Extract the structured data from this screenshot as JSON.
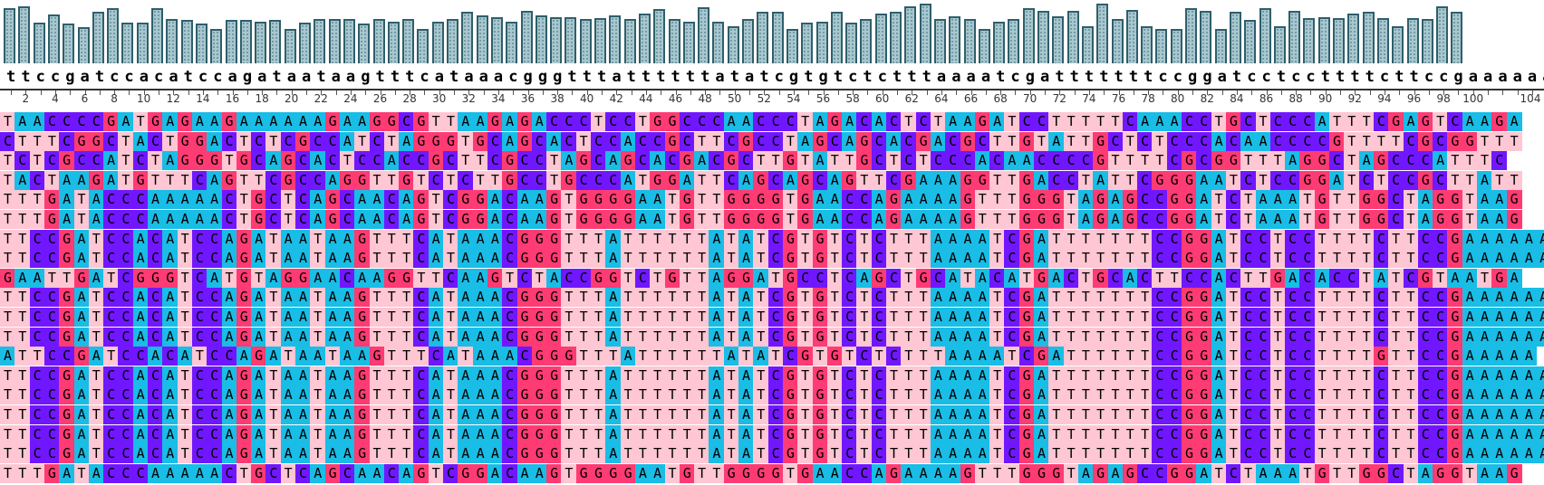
{
  "colors": {
    "A": "#ff2d7a",
    "C": "#7a1cff",
    "G": "#ff3d6b",
    "T": "#ffc4d2",
    "A_alt": "#00b7e6",
    "conservation_fill": "#a9c7cf",
    "conservation_border": "#2f5f6b"
  },
  "color_scheme": {
    "A": "#19bde6",
    "C": "#7117ff",
    "G": "#ff3b73",
    "T": "#ffc6d3"
  },
  "consensus": "ttccgatccacatccagataataagtttcataaacgggtttattttttatatcgtgtctctttaaaatcgatttttttccggatcctccttttcttccgaaaaaa",
  "ruler": {
    "start": 2,
    "step": 2,
    "labels": [
      "2",
      "4",
      "6",
      "8",
      "10",
      "12",
      "14",
      "16",
      "18",
      "20",
      "22",
      "24",
      "26",
      "28",
      "30",
      "32",
      "34",
      "36",
      "38",
      "40",
      "42",
      "44",
      "46",
      "48",
      "50",
      "52",
      "54",
      "56",
      "58",
      "60",
      "62",
      "64",
      "66",
      "68",
      "70",
      "72",
      "74",
      "76",
      "78",
      "80",
      "82",
      "84",
      "86",
      "88",
      "90",
      "92",
      "94",
      "96",
      "98",
      "100",
      "104"
    ]
  },
  "conservation": [
    0.93,
    0.95,
    0.68,
    0.82,
    0.66,
    0.6,
    0.86,
    0.93,
    0.68,
    0.68,
    0.93,
    0.74,
    0.72,
    0.66,
    0.58,
    0.72,
    0.72,
    0.7,
    0.72,
    0.58,
    0.68,
    0.74,
    0.74,
    0.74,
    0.66,
    0.74,
    0.7,
    0.74,
    0.58,
    0.7,
    0.74,
    0.86,
    0.81,
    0.77,
    0.7,
    0.88,
    0.81,
    0.78,
    0.78,
    0.74,
    0.76,
    0.8,
    0.74,
    0.83,
    0.91,
    0.74,
    0.7,
    0.94,
    0.7,
    0.62,
    0.74,
    0.86,
    0.86,
    0.58,
    0.68,
    0.7,
    0.86,
    0.68,
    0.74,
    0.83,
    0.86,
    0.95,
    1.0,
    0.74,
    0.79,
    0.74,
    0.58,
    0.7,
    0.74,
    0.92,
    0.88,
    0.79,
    0.88,
    0.62,
    1.0,
    0.74,
    0.9,
    0.62,
    0.58,
    0.58,
    0.92,
    0.88,
    0.58,
    0.86,
    0.72,
    0.92,
    0.62,
    0.88,
    0.76,
    0.78,
    0.76,
    0.84,
    0.86,
    0.76,
    0.62,
    0.76,
    0.74,
    0.96,
    0.86
  ],
  "alignment_rows": [
    "TAACCCCGATGAGAAGAAAAAAGAAGGCGTTAAGAGACCCTCCTGGCCCAACCCTAGACACTCTAAGATCCTTTTTCAAACCTGCTCCCATTTCGAGTCAAGA",
    "CTTTCGGCTACTGGACTCTCGCCATCTAGGGTGCAGCACTCCACCGCTTCGCCTAGCAGCACGACGCTTGTATTGCTCTCCCACAACCCCGTTTTCGCGGTTT",
    "TCTCGCCATCTAGGGTGCAGCACTCCACCGCTTCGCCTAGCAGCACGACGCTTGTATTGCTCTCCCACAACCCCGTTTTCGCGGTTTAGGCTAGCCCATTTC",
    "TACTAAGATGTTTCAGTTCGCCAGGTTGTCTCTTGCCTGCCCATGGATTCAGCAGCAGTTCGAAAGGTTGACCTATTCGGGAATCTCCGGATCTCCGCTTATT",
    "TTTGATACCCAAAAACTGCTCAGCAACAGTCGGACAAGTGGGGAATGTTGGGGTGAACCAGAAAAGTTTGGGTAGAGCCGGATCTAAATGTTGGCTAGGTAAG",
    "TTTGATACCCAAAAACTGCTCAGCAACAGTCGGACAAGTGGGGAATGTTGGGGTGAACCAGAAAAGTTTGGGTAGAGCCGGATCTAAATGTTGGCTAGGTAAG",
    "TTCCGATCCACATCCAGATAATAAGTTTCATAAACGGGTTTATTTTTTATATCGTGTCTCTTTAAAATCGATTTTTTTCCGGATCCTCCTTTTCTTCCGAAAAAA",
    "TTCCGATCCACATCCAGATAATAAGTTTCATAAACGGGTTTATTTTTTATATCGTGTCTCTTTAAAATCGATTTTTTTCCGGATCCTCCTTTTCTTCCGAAAAAA",
    "GAATTGATCGGGTCATGTAGGAACAAGGTTCAAGTCTACCGGTCTGTTAGGATGCCTCAGCTGCATACATGACTGCACTTCCACTTGACACCTATCGTAATGA",
    "TTCCGATCCACATCCAGATAATAAGTTTCATAAACGGGTTTATTTTTTATATCGTGTCTCTTTAAAATCGATTTTTTTCCGGATCCTCCTTTTCTTCCGAAAAAA",
    "TTCCGATCCACATCCAGATAATAAGTTTCATAAACGGGTTTATTTTTTATATCGTGTCTCTTTAAAATCGATTTTTTTCCGGATCCTCCTTTTCTTCCGAAAAAA",
    "TTCCGATCCACATCCAGATAATAAGTTTCATAAACGGGTTTATTTTTTATATCGTGTCTCTTTAAAATCGATTTTTTTCCGGATCCTCCTTTTCTTCCGAAAAAA",
    "ATTCCGATCCACATCCAGATAATAAGTTTCATAAACGGGTTTATTTTTTATATCGTGTCTCTTTAAAATCGATTTTTTCCGGATCCTCCTTTTGTTCCGAAAAA",
    "TTCCGATCCACATCCAGATAATAAGTTTCATAAACGGGTTTATTTTTTATATCGTGTCTCTTTAAAATCGATTTTTTTCCGGATCCTCCTTTTCTTCCGAAAAAA",
    "TTCCGATCCACATCCAGATAATAAGTTTCATAAACGGGTTTATTTTTTATATCGTGTCTCTTTAAAATCGATTTTTTTCCGGATCCTCCTTTTCTTCCGAAAAAA",
    "TTCCGATCCACATCCAGATAATAAGTTTCATAAACGGGTTTATTTTTTATATCGTGTCTCTTTAAAATCGATTTTTTTCCGGATCCTCCTTTTCTTCCGAAAAAA",
    "TTCCGATCCACATCCAGATAATAAGTTTCATAAACGGGTTTATTTTTTATATCGTGTCTCTTTAAAATCGATTTTTTTCCGGATCCTCCTTTTCTTCCGAAAAAA",
    "TTCCGATCCACATCCAGATAATAAGTTTCATAAACGGGTTTATTTTTTATATCGTGTCTCTTTAAAATCGATTTTTTTCCGGATCCTCCTTTTCTTCCGAAAAAA",
    "TTTGATACCCAAAAACTGCTCAGCAACAGTCGGACAAGTGGGGAATGTTGGGGTGAACCAGAAAAGTTTGGGTAGAGCCGGATCTAAATGTTGGCTAGGTAAG"
  ]
}
